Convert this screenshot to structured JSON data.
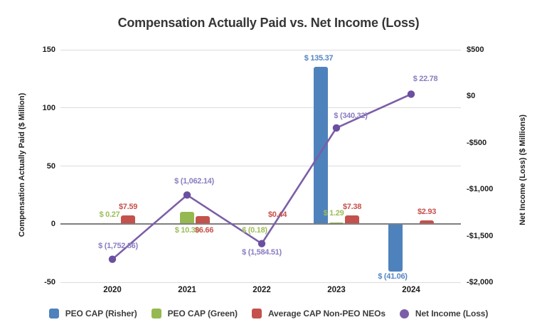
{
  "chart_data": {
    "type": "combo_bar_line",
    "title": "Compensation Actually Paid vs. Net Income (Loss)",
    "categories": [
      "2020",
      "2021",
      "2022",
      "2023",
      "2024"
    ],
    "left_axis": {
      "label": "Compensation Actually Paid ($ Million)",
      "min": -50,
      "max": 150,
      "ticks": [
        {
          "label": "150",
          "value": 150
        },
        {
          "label": "100",
          "value": 100
        },
        {
          "label": "50",
          "value": 50
        },
        {
          "label": "0",
          "value": 0
        },
        {
          "label": "-50",
          "value": -50
        }
      ]
    },
    "right_axis": {
      "label": "Net Income (Loss) ($ Millions)",
      "min": -2000,
      "max": 500,
      "ticks": [
        {
          "label": "$500",
          "value": 500
        },
        {
          "label": "$0",
          "value": 0
        },
        {
          "label": "-$500",
          "value": -500
        },
        {
          "label": "-$1,000",
          "value": -1000
        },
        {
          "label": "-$1,500",
          "value": -1500
        },
        {
          "label": "-$2,000",
          "value": -2000
        }
      ]
    },
    "series": [
      {
        "name": "PEO CAP (Risher)",
        "type": "bar",
        "axis": "left",
        "color": "#4E82BC",
        "label_color": "#5586C1",
        "values": [
          null,
          null,
          null,
          135.37,
          -41.06
        ],
        "labels": [
          null,
          null,
          null,
          "$ 135.37",
          "$ (41.06)"
        ]
      },
      {
        "name": "PEO CAP (Green)",
        "type": "bar",
        "axis": "left",
        "color": "#95B850",
        "label_color": "#9CBD59",
        "values": [
          0.27,
          10.3,
          -0.18,
          1.29,
          null
        ],
        "labels": [
          "$ 0.27",
          "$ 10.30",
          "$ (0.18)",
          "$ 1.29",
          null
        ]
      },
      {
        "name": "Average CAP Non-PEO NEOs",
        "type": "bar",
        "axis": "left",
        "color": "#C4514C",
        "label_color": "#C8504B",
        "values": [
          7.59,
          6.66,
          0.44,
          7.38,
          2.93
        ],
        "labels": [
          "$7.59",
          "$6.66",
          "$0.44",
          "$7.38",
          "$2.93"
        ]
      },
      {
        "name": "Net Income (Loss)",
        "type": "line",
        "axis": "right",
        "color": "#7B5EA7",
        "marker_color": "#6B4FA0",
        "label_color": "#8B7DC0",
        "values": [
          -1752.86,
          -1062.14,
          -1584.51,
          -340.32,
          22.78
        ],
        "labels": [
          "$ (1,752.86)",
          "$ (1,062.14)",
          "$ (1,584.51)",
          "$ (340.32)",
          "$ 22.78"
        ]
      }
    ],
    "legend": {
      "position": "bottom",
      "items": [
        {
          "label": "PEO CAP (Risher)",
          "shape": "square",
          "color": "#4E82BC"
        },
        {
          "label": "PEO CAP (Green)",
          "shape": "square",
          "color": "#95B850"
        },
        {
          "label": "Average CAP Non-PEO NEOs",
          "shape": "square",
          "color": "#C4514C"
        },
        {
          "label": "Net Income (Loss)",
          "shape": "circle",
          "color": "#7B5EA7"
        }
      ]
    },
    "grid": "horizontal",
    "background": "#FFFFFF"
  }
}
